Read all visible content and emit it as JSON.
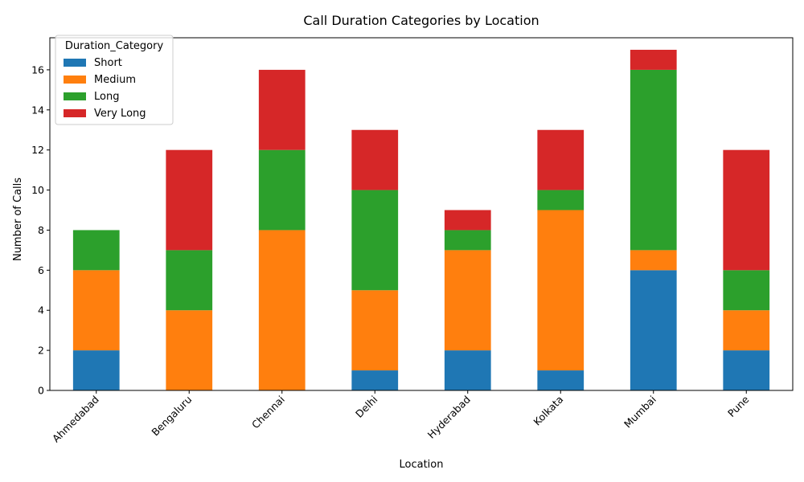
{
  "chart_data": {
    "type": "bar",
    "stacked": true,
    "title": "Call Duration Categories by Location",
    "xlabel": "Location",
    "ylabel": "Number of Calls",
    "categories": [
      "Ahmedabad",
      "Bengaluru",
      "Chennai",
      "Delhi",
      "Hyderabad",
      "Kolkata",
      "Mumbai",
      "Pune"
    ],
    "series": [
      {
        "name": "Short",
        "color": "#1f77b4",
        "values": [
          2,
          0,
          0,
          1,
          2,
          1,
          6,
          2
        ]
      },
      {
        "name": "Medium",
        "color": "#ff7f0e",
        "values": [
          4,
          4,
          8,
          4,
          5,
          8,
          1,
          2
        ]
      },
      {
        "name": "Long",
        "color": "#2ca02c",
        "values": [
          2,
          3,
          4,
          5,
          1,
          1,
          9,
          2
        ]
      },
      {
        "name": "Very Long",
        "color": "#d62728",
        "values": [
          0,
          5,
          4,
          3,
          1,
          3,
          1,
          6
        ]
      }
    ],
    "ylim": [
      0,
      17.6
    ],
    "yticks": [
      0,
      2,
      4,
      6,
      8,
      10,
      12,
      14,
      16
    ],
    "legend": {
      "title": "Duration_Category",
      "placement": "top-left"
    },
    "grid": false
  }
}
